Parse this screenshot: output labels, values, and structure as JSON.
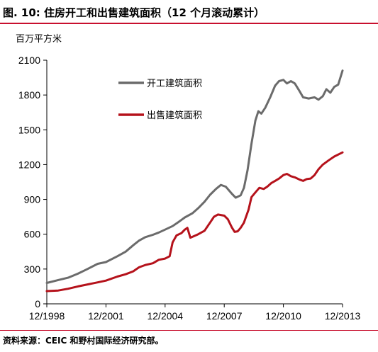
{
  "title": "图. 10: 住房开工和出售建筑面积（12 个月滚动累计）",
  "source": "资料来源：CEIC 和野村国际经济研究部。",
  "colors": {
    "accent_line": "#c8102e"
  },
  "chart_data": {
    "type": "line",
    "title": "图. 10: 住房开工和出售建筑面积（12 个月滚动累计）",
    "ylabel": "百万平方米",
    "xlabel": "",
    "ylim": [
      0,
      2100
    ],
    "yticks": [
      0,
      300,
      600,
      900,
      1200,
      1500,
      1800,
      2100
    ],
    "xlim": [
      1998.92,
      2013.92
    ],
    "xticks": [
      {
        "label": "12/1998",
        "x": 1998.92
      },
      {
        "label": "12/2001",
        "x": 2001.92
      },
      {
        "label": "12/2004",
        "x": 2004.92
      },
      {
        "label": "12/2007",
        "x": 2007.92
      },
      {
        "label": "12/2010",
        "x": 2010.92
      },
      {
        "label": "12/2013",
        "x": 2013.92
      }
    ],
    "grid": false,
    "legend_position": "top-center",
    "series": [
      {
        "name": "开工建筑面积",
        "color": "#6b6b6b",
        "points": [
          [
            1998.92,
            180
          ],
          [
            1999.5,
            205
          ],
          [
            2000.0,
            225
          ],
          [
            2000.5,
            260
          ],
          [
            2000.92,
            295
          ],
          [
            2001.5,
            345
          ],
          [
            2001.92,
            360
          ],
          [
            2002.5,
            410
          ],
          [
            2002.92,
            450
          ],
          [
            2003.3,
            505
          ],
          [
            2003.6,
            545
          ],
          [
            2003.92,
            575
          ],
          [
            2004.3,
            595
          ],
          [
            2004.6,
            615
          ],
          [
            2004.92,
            640
          ],
          [
            2005.3,
            670
          ],
          [
            2005.6,
            705
          ],
          [
            2005.92,
            745
          ],
          [
            2006.3,
            780
          ],
          [
            2006.6,
            825
          ],
          [
            2006.92,
            880
          ],
          [
            2007.2,
            940
          ],
          [
            2007.5,
            990
          ],
          [
            2007.75,
            1025
          ],
          [
            2008.0,
            1010
          ],
          [
            2008.3,
            950
          ],
          [
            2008.5,
            915
          ],
          [
            2008.75,
            935
          ],
          [
            2008.92,
            1000
          ],
          [
            2009.1,
            1150
          ],
          [
            2009.3,
            1380
          ],
          [
            2009.5,
            1580
          ],
          [
            2009.65,
            1660
          ],
          [
            2009.8,
            1640
          ],
          [
            2010.0,
            1690
          ],
          [
            2010.25,
            1780
          ],
          [
            2010.5,
            1880
          ],
          [
            2010.7,
            1920
          ],
          [
            2010.92,
            1930
          ],
          [
            2011.1,
            1900
          ],
          [
            2011.3,
            1920
          ],
          [
            2011.5,
            1900
          ],
          [
            2011.75,
            1830
          ],
          [
            2011.92,
            1780
          ],
          [
            2012.2,
            1770
          ],
          [
            2012.5,
            1780
          ],
          [
            2012.7,
            1760
          ],
          [
            2012.92,
            1790
          ],
          [
            2013.1,
            1850
          ],
          [
            2013.3,
            1820
          ],
          [
            2013.5,
            1870
          ],
          [
            2013.7,
            1890
          ],
          [
            2013.92,
            2010
          ]
        ]
      },
      {
        "name": "出售建筑面积",
        "color": "#b5121b",
        "points": [
          [
            1998.92,
            110
          ],
          [
            1999.5,
            115
          ],
          [
            2000.0,
            130
          ],
          [
            2000.5,
            150
          ],
          [
            2000.92,
            165
          ],
          [
            2001.5,
            185
          ],
          [
            2001.92,
            200
          ],
          [
            2002.5,
            235
          ],
          [
            2002.92,
            255
          ],
          [
            2003.3,
            280
          ],
          [
            2003.6,
            315
          ],
          [
            2003.92,
            335
          ],
          [
            2004.3,
            350
          ],
          [
            2004.6,
            380
          ],
          [
            2004.92,
            390
          ],
          [
            2005.15,
            410
          ],
          [
            2005.3,
            530
          ],
          [
            2005.5,
            590
          ],
          [
            2005.75,
            610
          ],
          [
            2005.92,
            640
          ],
          [
            2006.05,
            655
          ],
          [
            2006.2,
            570
          ],
          [
            2006.4,
            585
          ],
          [
            2006.6,
            600
          ],
          [
            2006.92,
            630
          ],
          [
            2007.2,
            700
          ],
          [
            2007.4,
            750
          ],
          [
            2007.6,
            770
          ],
          [
            2007.92,
            760
          ],
          [
            2008.1,
            730
          ],
          [
            2008.3,
            660
          ],
          [
            2008.45,
            620
          ],
          [
            2008.6,
            625
          ],
          [
            2008.75,
            655
          ],
          [
            2008.92,
            700
          ],
          [
            2009.15,
            810
          ],
          [
            2009.3,
            920
          ],
          [
            2009.5,
            960
          ],
          [
            2009.7,
            1000
          ],
          [
            2009.92,
            990
          ],
          [
            2010.1,
            1010
          ],
          [
            2010.3,
            1040
          ],
          [
            2010.5,
            1060
          ],
          [
            2010.7,
            1080
          ],
          [
            2010.92,
            1110
          ],
          [
            2011.1,
            1120
          ],
          [
            2011.3,
            1100
          ],
          [
            2011.5,
            1090
          ],
          [
            2011.75,
            1070
          ],
          [
            2011.92,
            1060
          ],
          [
            2012.1,
            1075
          ],
          [
            2012.3,
            1080
          ],
          [
            2012.5,
            1110
          ],
          [
            2012.7,
            1160
          ],
          [
            2012.92,
            1200
          ],
          [
            2013.2,
            1235
          ],
          [
            2013.5,
            1270
          ],
          [
            2013.92,
            1305
          ]
        ]
      }
    ]
  }
}
